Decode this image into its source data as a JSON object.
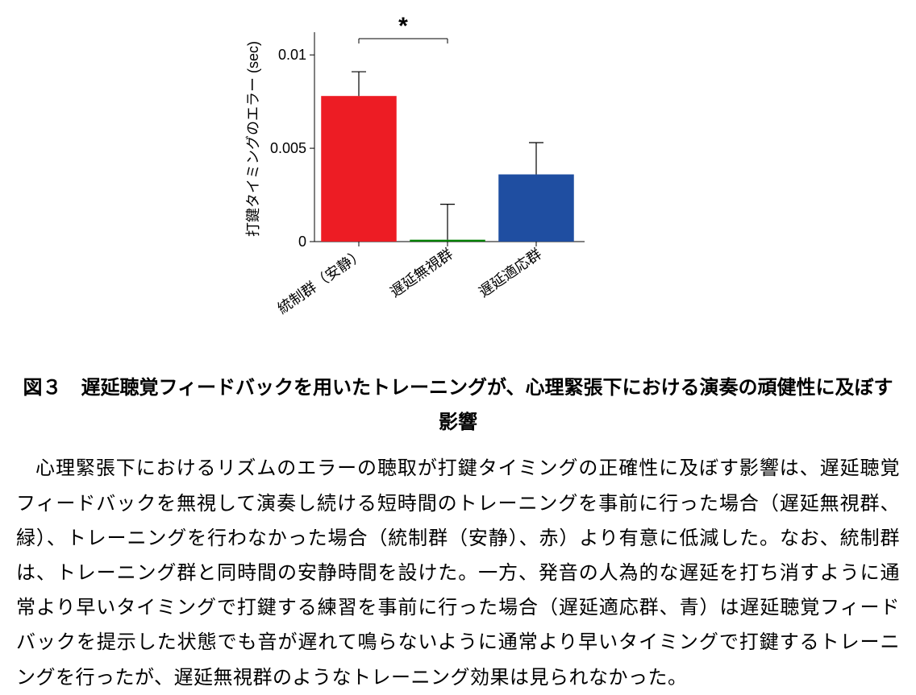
{
  "chart": {
    "type": "bar",
    "y_axis_label": "打鍵タイミングのエラー (sec)",
    "y_axis_label_fontsize": 18,
    "ylim": [
      0,
      0.011
    ],
    "yticks": [
      0,
      0.005,
      0.01
    ],
    "ytick_labels": [
      "0",
      "0.005",
      "0.01"
    ],
    "tick_fontsize": 18,
    "categories": [
      "統制群（安静）",
      "遅延無視群",
      "遅延適応群"
    ],
    "category_label_fontsize": 18,
    "category_label_rotation": -35,
    "values": [
      0.0078,
      0.0001,
      0.0036
    ],
    "errors": [
      0.0013,
      0.0019,
      0.0017
    ],
    "bar_colors": [
      "#ed1c24",
      "#008000",
      "#1f4ea1"
    ],
    "errorbar_color": "#000000",
    "errorbar_width": 1.2,
    "errorbar_cap_width": 18,
    "bar_width": 0.85,
    "axis_color": "#000000",
    "axis_width": 1,
    "background_color": "#ffffff",
    "significance": {
      "text": "*",
      "between": [
        0,
        1
      ],
      "fontsize": 30,
      "line_color": "#000000"
    }
  },
  "caption": {
    "title": "図３　遅延聴覚フィードバックを用いたトレーニングが、心理緊張下における演奏の頑健性に及ぼす影響",
    "body": "心理緊張下におけるリズムのエラーの聴取が打鍵タイミングの正確性に及ぼす影響は、遅延聴覚フィードバックを無視して演奏し続ける短時間のトレーニングを事前に行った場合（遅延無視群、緑）、トレーニングを行わなかった場合（統制群（安静）、赤）より有意に低減した。なお、統制群は、トレーニング群と同時間の安静時間を設けた。一方、発音の人為的な遅延を打ち消すように通常より早いタイミングで打鍵する練習を事前に行った場合（遅延適応群、青）は遅延聴覚フィードバックを提示した状態でも音が遅れて鳴らないように通常より早いタイミングで打鍵するトレーニングを行ったが、遅延無視群のようなトレーニング効果は見られなかった。"
  }
}
